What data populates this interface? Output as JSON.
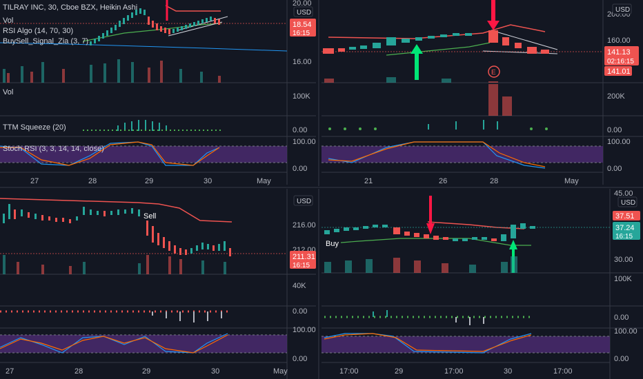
{
  "colors": {
    "background": "#131722",
    "up": "#26a69a",
    "down": "#ef5350",
    "stoch_fill": "#4a2a6e",
    "signal_red": "#ff1744",
    "signal_green": "#00e676",
    "text": "#d1d4dc",
    "muted": "#b2b5be"
  },
  "panes": [
    {
      "name": "tilray",
      "header": {
        "title": "TILRAY INC, 30, Cboe BZX, Heikin Ashi",
        "indicators": [
          "Vol",
          "RSI Algo (14, 70, 30)",
          "BuySell_Signal_Zia (3, 7)"
        ]
      },
      "currency": "USD",
      "price_axis": [
        "20.00",
        "16.00"
      ],
      "last_price": "18.54",
      "countdown": "16:15",
      "volume_label": "Vol",
      "volume_axis": "100K",
      "squeeze_label": "TTM Squeeze (20)",
      "squeeze_axis": "0.00",
      "stoch_label": "Stoch RSI (3, 3, 14, 14, close)",
      "stoch_axis": [
        "100.00",
        "0.00"
      ],
      "time_axis": [
        "27",
        "28",
        "29",
        "30",
        "May"
      ]
    },
    {
      "name": "top-right",
      "currency": "USD",
      "price_axis": [
        "200.00",
        "160.00"
      ],
      "last_price": "141.13",
      "countdown": "02:16:15",
      "second_price": "141.01",
      "earnings_label": "E",
      "volume_axis": "200K",
      "squeeze_axis": "0.00",
      "stoch_axis": [
        "100.00",
        "0.00"
      ],
      "time_axis": [
        "21",
        "26",
        "28",
        "May"
      ]
    },
    {
      "name": "bottom-left",
      "sell_label": "Sell",
      "currency": "USD",
      "price_axis": [
        "216.00",
        "212.00"
      ],
      "last_price": "211.31",
      "countdown": "16:15",
      "volume_axis": "40K",
      "squeeze_axis": "0.00",
      "stoch_axis": [
        "100.00",
        "0.00"
      ],
      "time_axis": [
        "27",
        "28",
        "29",
        "30",
        "May"
      ]
    },
    {
      "name": "bottom-right",
      "buy_label": "Buy",
      "currency": "USD",
      "price_axis": [
        "45.00",
        "30.00"
      ],
      "upper_price": "37.51",
      "last_price": "37.24",
      "countdown": "16:15",
      "volume_axis": "100K",
      "squeeze_axis": "0.00",
      "stoch_axis": [
        "100.00",
        "0.00"
      ],
      "time_axis": [
        "17:00",
        "29",
        "17:00",
        "30",
        "17:00"
      ]
    }
  ]
}
